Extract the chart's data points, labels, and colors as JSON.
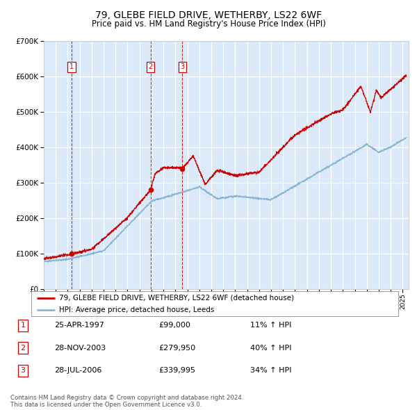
{
  "title": "79, GLEBE FIELD DRIVE, WETHERBY, LS22 6WF",
  "subtitle": "Price paid vs. HM Land Registry's House Price Index (HPI)",
  "legend_red": "79, GLEBE FIELD DRIVE, WETHERBY, LS22 6WF (detached house)",
  "legend_blue": "HPI: Average price, detached house, Leeds",
  "footer1": "Contains HM Land Registry data © Crown copyright and database right 2024.",
  "footer2": "This data is licensed under the Open Government Licence v3.0.",
  "transactions": [
    {
      "num": 1,
      "date": "25-APR-1997",
      "price": 99000,
      "price_str": "£99,000",
      "hpi": "11% ↑ HPI",
      "x_year": 1997.32
    },
    {
      "num": 2,
      "date": "28-NOV-2003",
      "price": 279950,
      "price_str": "£279,950",
      "hpi": "40% ↑ HPI",
      "x_year": 2003.92
    },
    {
      "num": 3,
      "date": "28-JUL-2006",
      "price": 339995,
      "price_str": "£339,995",
      "hpi": "34% ↑ HPI",
      "x_year": 2006.58
    }
  ],
  "ylim": [
    0,
    700000
  ],
  "xlim_start": 1995.0,
  "xlim_end": 2025.5,
  "plot_bg": "#dce9f8",
  "grid_color": "#ffffff",
  "red_color": "#cc0000",
  "blue_color": "#8ab4d4",
  "dashed_color": "#cc0000",
  "title_fontsize": 10,
  "subtitle_fontsize": 8.5
}
